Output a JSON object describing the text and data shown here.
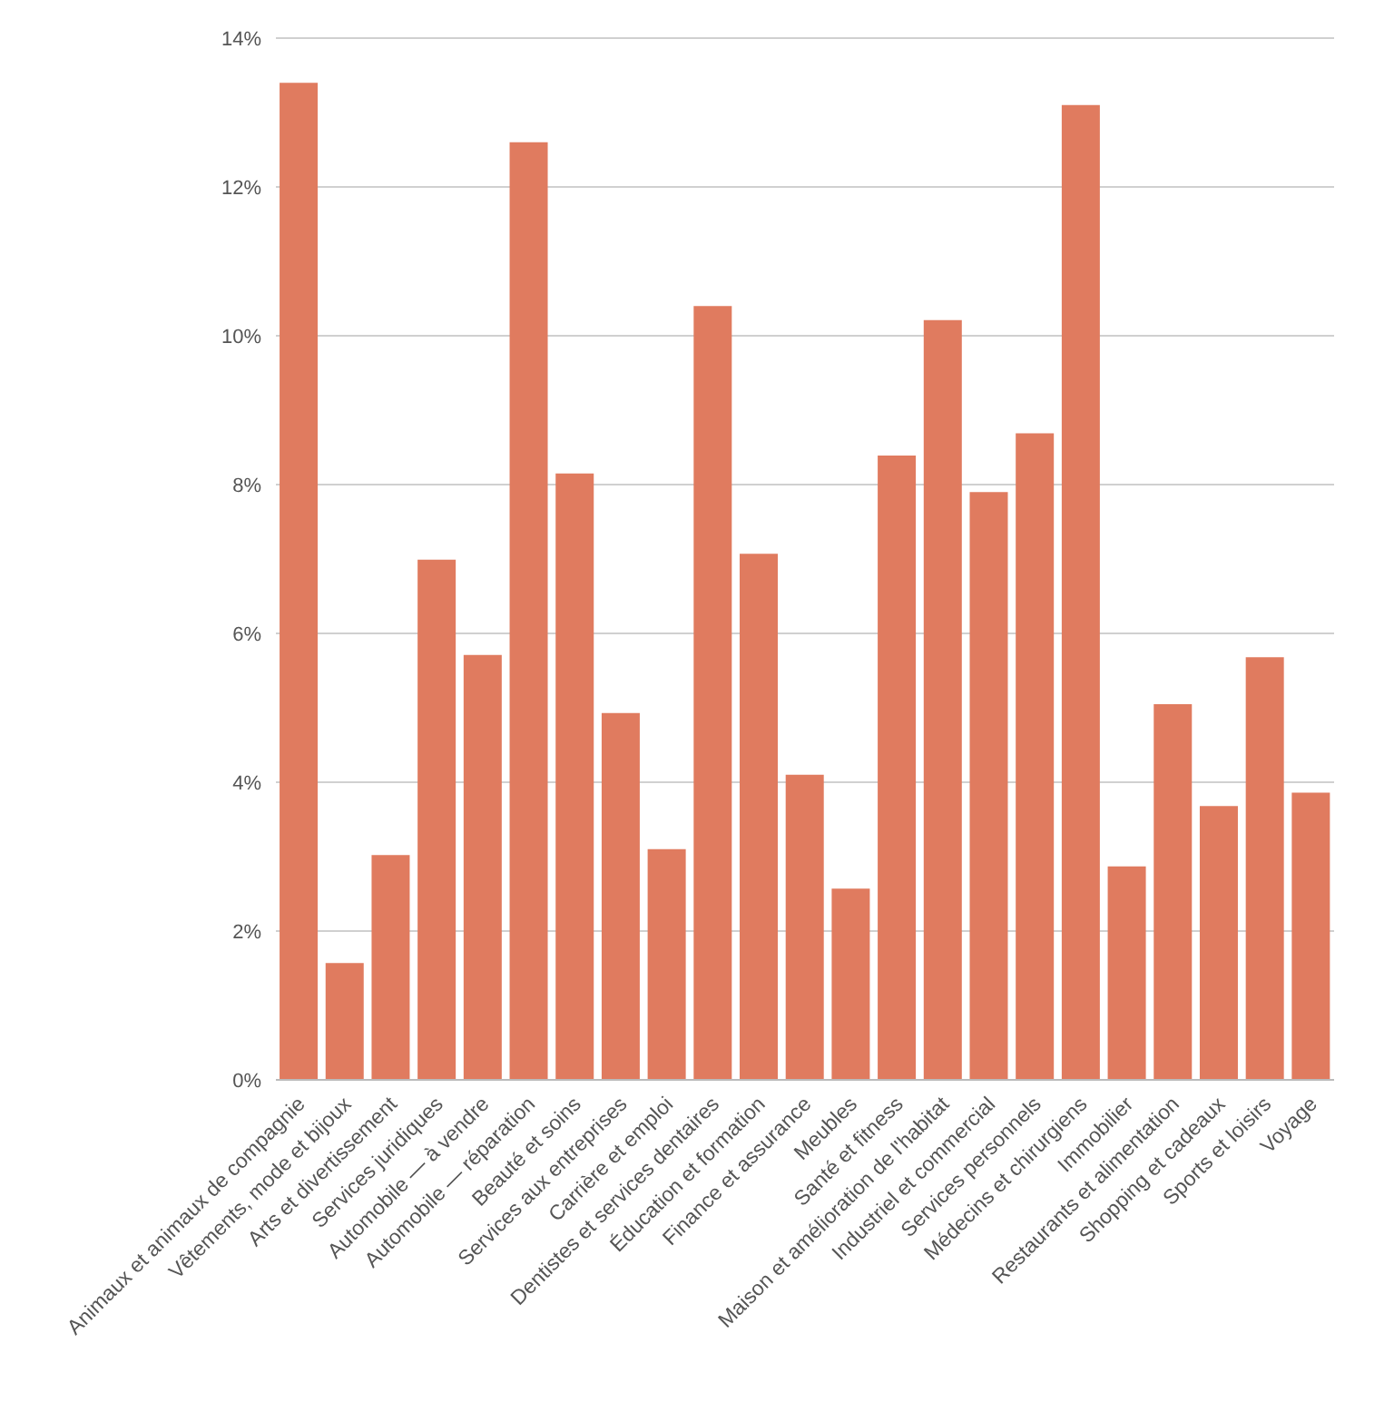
{
  "chart_data": {
    "type": "bar",
    "categories": [
      "Animaux et animaux de compagnie",
      "Vêtements, mode et bijoux",
      "Arts et divertissement",
      "Services juridiques",
      "Automobile — à vendre",
      "Automobile — réparation",
      "Beauté et soins",
      "Services aux entreprises",
      "Carrière et emploi",
      "Dentistes et services dentaires",
      "Éducation et formation",
      "Finance et assurance",
      "Meubles",
      "Santé et fitness",
      "Maison et amélioration de l'habitat",
      "Industriel et commercial",
      "Services personnels",
      "Médecins et chirurgiens",
      "Immobilier",
      "Restaurants et alimentation",
      "Shopping et cadeaux",
      "Sports et loisirs",
      "Voyage"
    ],
    "values": [
      13.4,
      1.57,
      3.02,
      6.99,
      5.71,
      12.6,
      8.15,
      4.93,
      3.1,
      10.4,
      7.07,
      4.1,
      2.57,
      8.39,
      10.21,
      7.9,
      8.69,
      13.1,
      2.87,
      5.05,
      3.68,
      5.68,
      3.86
    ],
    "color": "#e07b5f",
    "ylim": [
      0,
      14
    ],
    "yticks": [
      {
        "value": 0,
        "label": "0%"
      },
      {
        "value": 2,
        "label": "2%"
      },
      {
        "value": 4,
        "label": "4%"
      },
      {
        "value": 6,
        "label": "6%"
      },
      {
        "value": 8,
        "label": "8%"
      },
      {
        "value": 10,
        "label": "10%"
      },
      {
        "value": 12,
        "label": "12%"
      },
      {
        "value": 14,
        "label": "14%"
      }
    ],
    "grid": "y"
  }
}
